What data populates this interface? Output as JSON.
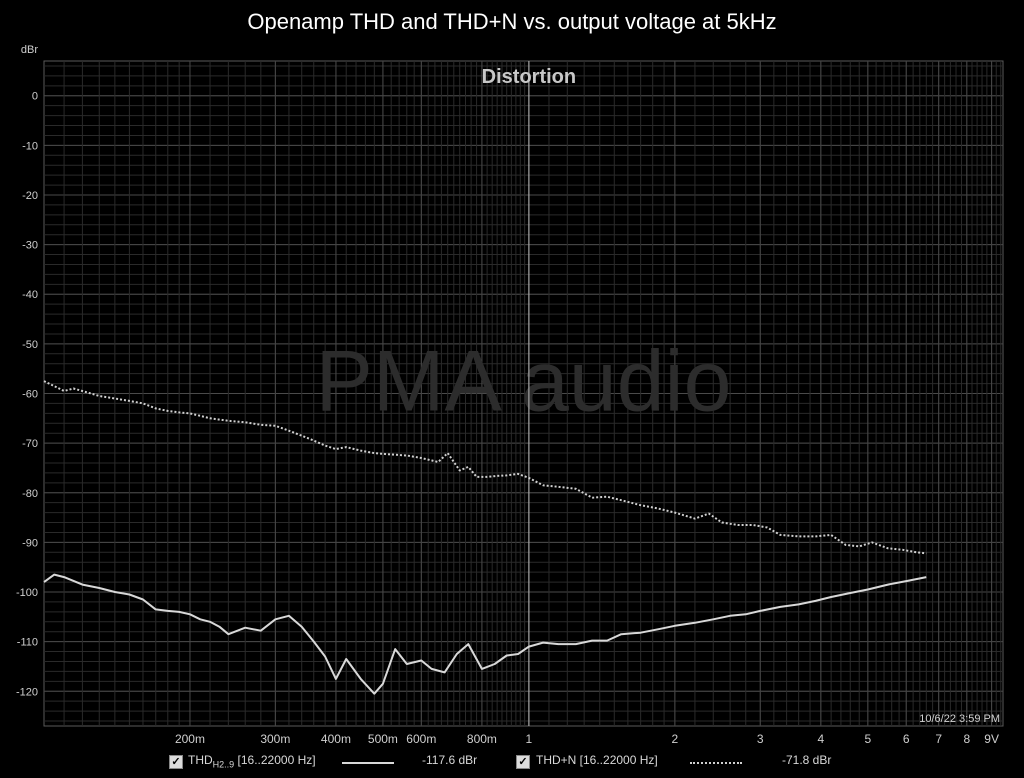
{
  "title": "Openamp THD and THD+N vs. output voltage at 5kHz",
  "chart_data": {
    "type": "line",
    "title": "Openamp THD and THD+N vs. output voltage at 5kHz",
    "plot_label": "Distortion",
    "watermark": "PMA audio",
    "timestamp": "10/6/22 3:59 PM",
    "ylabel": "dBr",
    "xscale": "log",
    "xlim": [
      0.1,
      9.5
    ],
    "ylim": [
      -127,
      7
    ],
    "y_ticks": [
      0,
      -10,
      -20,
      -30,
      -40,
      -50,
      -60,
      -70,
      -80,
      -90,
      -100,
      -110,
      -120
    ],
    "x_tick_labels": [
      {
        "v": 0.2,
        "label": "200m"
      },
      {
        "v": 0.3,
        "label": "300m"
      },
      {
        "v": 0.4,
        "label": "400m"
      },
      {
        "v": 0.5,
        "label": "500m"
      },
      {
        "v": 0.6,
        "label": "600m"
      },
      {
        "v": 0.8,
        "label": "800m"
      },
      {
        "v": 1,
        "label": "1"
      },
      {
        "v": 2,
        "label": "2"
      },
      {
        "v": 3,
        "label": "3"
      },
      {
        "v": 4,
        "label": "4"
      },
      {
        "v": 5,
        "label": "5"
      },
      {
        "v": 6,
        "label": "6"
      },
      {
        "v": 7,
        "label": "7"
      },
      {
        "v": 8,
        "label": "8"
      },
      {
        "v": 9,
        "label": "9V"
      }
    ],
    "cursor_x": 1,
    "grid": true,
    "series": [
      {
        "name": "THD+N [16..22000 Hz]",
        "style": "dotted",
        "color": "#d0d0d0",
        "x": [
          0.1,
          0.105,
          0.11,
          0.115,
          0.12,
          0.13,
          0.14,
          0.15,
          0.16,
          0.17,
          0.18,
          0.19,
          0.2,
          0.21,
          0.22,
          0.24,
          0.26,
          0.28,
          0.3,
          0.32,
          0.34,
          0.36,
          0.38,
          0.4,
          0.42,
          0.45,
          0.48,
          0.52,
          0.56,
          0.6,
          0.65,
          0.68,
          0.72,
          0.75,
          0.78,
          0.82,
          0.86,
          0.9,
          0.95,
          1.0,
          1.07,
          1.15,
          1.25,
          1.35,
          1.45,
          1.55,
          1.7,
          1.85,
          2.0,
          2.2,
          2.35,
          2.5,
          2.7,
          2.9,
          3.1,
          3.3,
          3.6,
          3.9,
          4.2,
          4.5,
          4.8,
          5.1,
          5.5,
          5.9,
          6.3,
          6.6
        ],
        "y": [
          -57.5,
          -58.5,
          -59.5,
          -59,
          -59.5,
          -60.5,
          -61,
          -61.5,
          -62,
          -63,
          -63.5,
          -63.8,
          -64,
          -64.5,
          -65,
          -65.5,
          -65.8,
          -66.3,
          -66.5,
          -67.5,
          -68.5,
          -69.5,
          -70.5,
          -71.2,
          -70.8,
          -71.5,
          -72,
          -72.3,
          -72.5,
          -73,
          -73.8,
          -72,
          -75.5,
          -74.8,
          -76.8,
          -76.8,
          -76.6,
          -76.5,
          -76.2,
          -77,
          -78.5,
          -78.8,
          -79.2,
          -81,
          -80.8,
          -81.5,
          -82.5,
          -83.2,
          -84,
          -85.2,
          -84.2,
          -86,
          -86.5,
          -86.5,
          -87,
          -88.5,
          -88.8,
          -88.8,
          -88.5,
          -90.5,
          -90.8,
          -90,
          -91.2,
          -91.5,
          -92,
          -92.2
        ]
      },
      {
        "name": "THD H2..9 [16..22000 Hz]",
        "style": "solid",
        "color": "#d8d8d8",
        "x": [
          0.1,
          0.105,
          0.11,
          0.12,
          0.13,
          0.14,
          0.15,
          0.16,
          0.17,
          0.18,
          0.19,
          0.2,
          0.21,
          0.22,
          0.23,
          0.24,
          0.26,
          0.28,
          0.3,
          0.32,
          0.34,
          0.36,
          0.38,
          0.4,
          0.42,
          0.45,
          0.48,
          0.5,
          0.53,
          0.56,
          0.6,
          0.63,
          0.67,
          0.71,
          0.75,
          0.8,
          0.85,
          0.9,
          0.95,
          1.0,
          1.07,
          1.15,
          1.25,
          1.35,
          1.45,
          1.55,
          1.7,
          1.85,
          2.0,
          2.2,
          2.4,
          2.6,
          2.8,
          3.0,
          3.3,
          3.6,
          3.9,
          4.2,
          4.6,
          5.0,
          5.5,
          6.0,
          6.6
        ],
        "y": [
          -98,
          -96.5,
          -97,
          -98.5,
          -99.2,
          -100,
          -100.5,
          -101.5,
          -103.5,
          -103.8,
          -104,
          -104.5,
          -105.5,
          -106,
          -107,
          -108.5,
          -107.2,
          -107.8,
          -105.5,
          -104.8,
          -107,
          -110,
          -113,
          -117.5,
          -113.5,
          -117.5,
          -120.5,
          -118.5,
          -111.5,
          -114.5,
          -113.8,
          -115.5,
          -116.2,
          -112.5,
          -110.5,
          -115.5,
          -114.5,
          -112.8,
          -112.5,
          -111,
          -110.2,
          -110.5,
          -110.5,
          -109.8,
          -109.8,
          -108.5,
          -108.2,
          -107.5,
          -106.8,
          -106.2,
          -105.5,
          -104.8,
          -104.5,
          -103.8,
          -103,
          -102.5,
          -101.8,
          -101,
          -100.2,
          -99.5,
          -98.5,
          -97.8,
          -97
        ]
      }
    ]
  },
  "legend": {
    "thd_label": "THD",
    "thd_sub": "H2..9",
    "thd_range": " [16..22000 Hz]",
    "thd_value": "-117.6 dBr",
    "thdn_label": "THD+N [16..22000 Hz]",
    "thdn_value": "-71.8 dBr",
    "check": "✓"
  }
}
